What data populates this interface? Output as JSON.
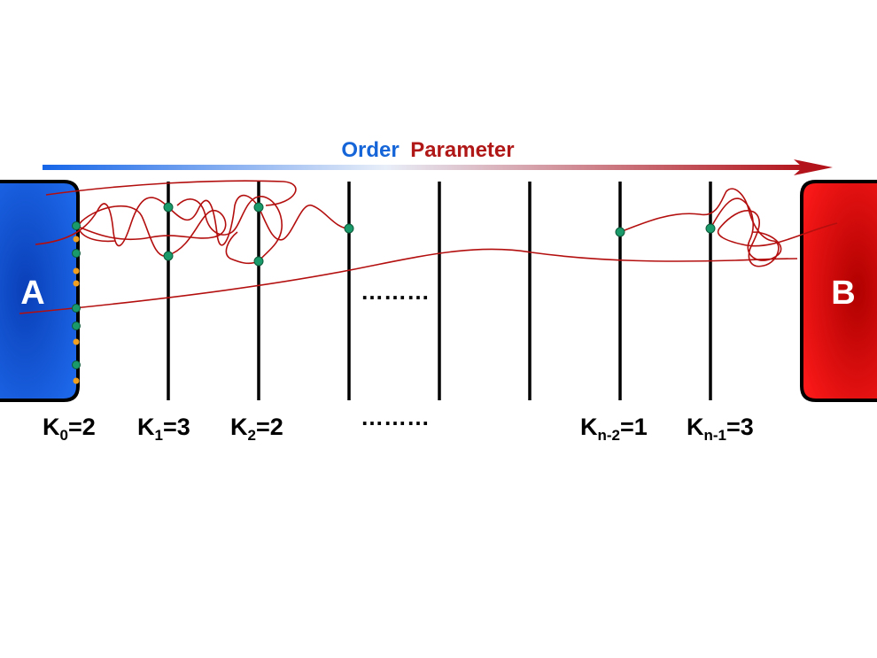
{
  "title": {
    "word1": "Order",
    "word2": "Parameter",
    "word1_color": "#1565d8",
    "word2_color": "#b01818"
  },
  "arrow": {
    "color_start": "#1565e8",
    "color_end": "#b3141b"
  },
  "state_a": {
    "label": "A",
    "color": "#0a4fe0"
  },
  "state_b": {
    "label": "B",
    "color": "#e80000"
  },
  "interfaces": [
    {
      "label": "K",
      "sub": "0",
      "value": "=2"
    },
    {
      "label": "K",
      "sub": "1",
      "value": "=3"
    },
    {
      "label": "K",
      "sub": "2",
      "value": "=2"
    },
    {
      "label": "K",
      "sub": "n-2",
      "value": "=1"
    },
    {
      "label": "K",
      "sub": "n-1",
      "value": "=3"
    }
  ],
  "ellipsis_middle": "………",
  "ellipsis_labels": "………",
  "colors": {
    "trajectory": "#b40f0f",
    "crossing_point": "#1a9a6a",
    "basin_point": "#f0a020"
  }
}
